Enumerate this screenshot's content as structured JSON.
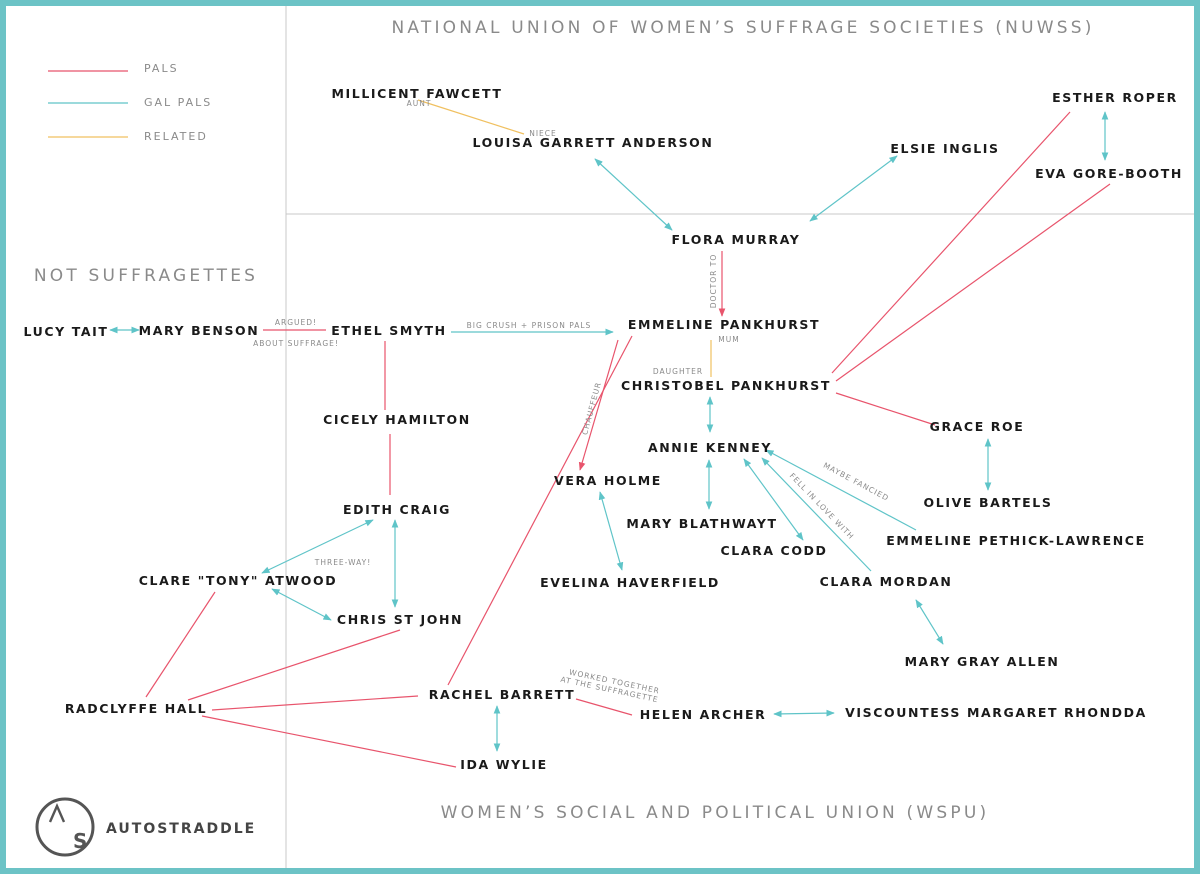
{
  "legend": [
    {
      "label": "PALS",
      "color": "#e8546c"
    },
    {
      "label": "GAL PALS",
      "color": "#5fc4c8"
    },
    {
      "label": "RELATED",
      "color": "#f0c060"
    }
  ],
  "regions": {
    "nuwss": "NATIONAL UNION OF WOMEN’S SUFFRAGE SOCIETIES (NUWSS)",
    "not_suffragettes": "NOT SUFFRAGETTES",
    "wspu": "WOMEN’S SOCIAL AND POLITICAL UNION (WSPU)"
  },
  "brand": {
    "name": "AUTOSTRADDLE",
    "logo_letters": "AS"
  },
  "people": [
    {
      "id": "fawcett",
      "name": "MILLICENT FAWCETT"
    },
    {
      "id": "anderson",
      "name": "LOUISA GARRETT ANDERSON"
    },
    {
      "id": "roper",
      "name": "ESTHER ROPER"
    },
    {
      "id": "inglis",
      "name": "ELSIE INGLIS"
    },
    {
      "id": "gorebooth",
      "name": "EVA GORE-BOOTH"
    },
    {
      "id": "murray",
      "name": "FLORA MURRAY"
    },
    {
      "id": "tait",
      "name": "LUCY TAIT"
    },
    {
      "id": "benson",
      "name": "MARY BENSON"
    },
    {
      "id": "smyth",
      "name": "ETHEL SMYTH"
    },
    {
      "id": "emmeline",
      "name": "EMMELINE PANKHURST"
    },
    {
      "id": "christabel",
      "name": "CHRISTOBEL PANKHURST"
    },
    {
      "id": "hamilton",
      "name": "CICELY HAMILTON"
    },
    {
      "id": "kenney",
      "name": "ANNIE KENNEY"
    },
    {
      "id": "roe",
      "name": "GRACE ROE"
    },
    {
      "id": "holme",
      "name": "VERA HOLME"
    },
    {
      "id": "craig",
      "name": "EDITH CRAIG"
    },
    {
      "id": "bartels",
      "name": "OLIVE BARTELS"
    },
    {
      "id": "blathwayt",
      "name": "MARY BLATHWAYT"
    },
    {
      "id": "pethick",
      "name": "EMMELINE PETHICK-LAWRENCE"
    },
    {
      "id": "codd",
      "name": "CLARA CODD"
    },
    {
      "id": "atwood",
      "name": "CLARE \"TONY\" ATWOOD"
    },
    {
      "id": "haverfield",
      "name": "EVELINA HAVERFIELD"
    },
    {
      "id": "mordan",
      "name": "CLARA MORDAN"
    },
    {
      "id": "stjohn",
      "name": "CHRIS ST JOHN"
    },
    {
      "id": "allen",
      "name": "MARY GRAY ALLEN"
    },
    {
      "id": "hall",
      "name": "RADCLYFFE HALL"
    },
    {
      "id": "barrett",
      "name": "RACHEL BARRETT"
    },
    {
      "id": "archer",
      "name": "HELEN ARCHER"
    },
    {
      "id": "rhondda",
      "name": "VISCOUNTESS MARGARET RHONDDA"
    },
    {
      "id": "wylie",
      "name": "IDA WYLIE"
    }
  ],
  "annotations": [
    {
      "id": "aunt",
      "text": "AUNT"
    },
    {
      "id": "niece",
      "text": "NIECE"
    },
    {
      "id": "doctor",
      "text": "DOCTOR TO"
    },
    {
      "id": "argued1",
      "text": "ARGUED!"
    },
    {
      "id": "argued2",
      "text": "ABOUT SUFFRAGE!"
    },
    {
      "id": "crush",
      "text": "BIG CRUSH + PRISON PALS"
    },
    {
      "id": "mum",
      "text": "MUM"
    },
    {
      "id": "daughter",
      "text": "DAUGHTER"
    },
    {
      "id": "chauffeur",
      "text": "CHAUFFEUR"
    },
    {
      "id": "fancied",
      "text": "MAYBE FANCIED"
    },
    {
      "id": "fell",
      "text": "FELL IN LOVE WITH"
    },
    {
      "id": "threeway",
      "text": "THREE-WAY!"
    },
    {
      "id": "worked1",
      "text": "WORKED TOGETHER"
    },
    {
      "id": "worked2",
      "text": "AT THE SUFFRAGETTE"
    }
  ]
}
